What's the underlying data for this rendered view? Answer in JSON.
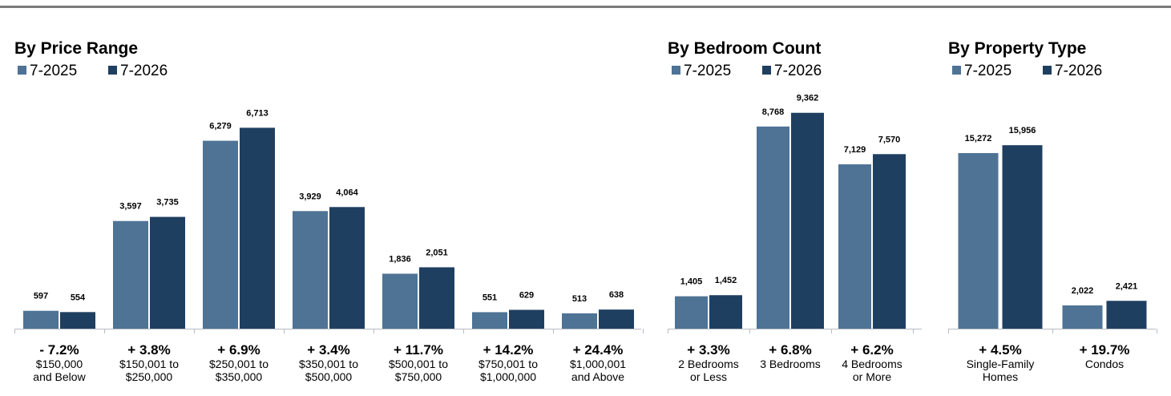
{
  "colors": {
    "series_2025": "#4e7395",
    "series_2026": "#1f3f60",
    "axis": "#b7bcc2"
  },
  "chart_data": [
    {
      "type": "bar",
      "title": "By Price Range",
      "series": [
        {
          "name": "7-2025",
          "values": [
            597,
            3597,
            6279,
            3929,
            1836,
            551,
            513
          ]
        },
        {
          "name": "7-2026",
          "values": [
            554,
            3735,
            6713,
            4064,
            2051,
            629,
            638
          ]
        }
      ],
      "categories": [
        {
          "change": "- 7.2%",
          "line1": "$150,000",
          "line2": "and Below"
        },
        {
          "change": "+ 3.8%",
          "line1": "$150,001 to",
          "line2": "$250,000"
        },
        {
          "change": "+ 6.9%",
          "line1": "$250,001 to",
          "line2": "$350,000"
        },
        {
          "change": "+ 3.4%",
          "line1": "$350,001 to",
          "line2": "$500,000"
        },
        {
          "change": "+ 11.7%",
          "line1": "$500,001 to",
          "line2": "$750,000"
        },
        {
          "change": "+ 14.2%",
          "line1": "$750,001 to",
          "line2": "$1,000,000"
        },
        {
          "change": "+ 24.4%",
          "line1": "$1,000,001",
          "line2": "and Above"
        }
      ],
      "value_labels": [
        [
          "597",
          "3,597",
          "6,279",
          "3,929",
          "1,836",
          "551",
          "513"
        ],
        [
          "554",
          "3,735",
          "6,713",
          "4,064",
          "2,051",
          "629",
          "638"
        ]
      ],
      "ylim": [
        0,
        7500
      ],
      "legend_position": "top-left",
      "grid": false
    },
    {
      "type": "bar",
      "title": "By Bedroom Count",
      "series": [
        {
          "name": "7-2025",
          "values": [
            1405,
            8768,
            7129
          ]
        },
        {
          "name": "7-2026",
          "values": [
            1452,
            9362,
            7570
          ]
        }
      ],
      "categories": [
        {
          "change": "+ 3.3%",
          "line1": "2 Bedrooms",
          "line2": "or Less"
        },
        {
          "change": "+ 6.8%",
          "line1": "3 Bedrooms",
          "line2": ""
        },
        {
          "change": "+ 6.2%",
          "line1": "4 Bedrooms",
          "line2": "or More"
        }
      ],
      "value_labels": [
        [
          "1,405",
          "8,768",
          "7,129"
        ],
        [
          "1,452",
          "9,362",
          "7,570"
        ]
      ],
      "ylim": [
        0,
        10500
      ],
      "legend_position": "top-left",
      "grid": false
    },
    {
      "type": "bar",
      "title": "By Property Type",
      "series": [
        {
          "name": "7-2025",
          "values": [
            15272,
            2022
          ]
        },
        {
          "name": "7-2026",
          "values": [
            15956,
            2421
          ]
        }
      ],
      "categories": [
        {
          "change": "+ 4.5%",
          "line1": "Single-Family",
          "line2": "Homes"
        },
        {
          "change": "+ 19.7%",
          "line1": "Condos",
          "line2": ""
        }
      ],
      "value_labels": [
        [
          "15,272",
          "2,022"
        ],
        [
          "15,956",
          "2,421"
        ]
      ],
      "ylim": [
        0,
        17500
      ],
      "legend_position": "top-left",
      "grid": false
    }
  ]
}
